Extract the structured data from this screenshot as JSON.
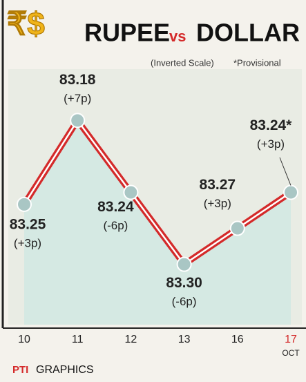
{
  "chart_data": {
    "type": "line",
    "logo": "₹$",
    "title_parts": [
      "RUPEE",
      "vs",
      "DOLLAR"
    ],
    "subtitle": "(Inverted Scale)",
    "note": "*Provisional",
    "categories": [
      "10",
      "11",
      "12",
      "13",
      "16",
      "17"
    ],
    "month": "OCT",
    "values": [
      83.25,
      83.18,
      83.24,
      83.3,
      83.27,
      83.24
    ],
    "value_labels": [
      "83.25",
      "83.18",
      "83.24",
      "83.30",
      "83.27",
      "83.24*"
    ],
    "change_labels": [
      "(+3p)",
      "(+7p)",
      "(-6p)",
      "(-6p)",
      "(+3p)",
      "(+3p)"
    ],
    "ylim": [
      83.14,
      83.34
    ],
    "inverted": true,
    "color": "#d42a2a",
    "area_color": "#cfe8e2",
    "footer_logo": "PTI",
    "footer": "GRAPHICS"
  }
}
